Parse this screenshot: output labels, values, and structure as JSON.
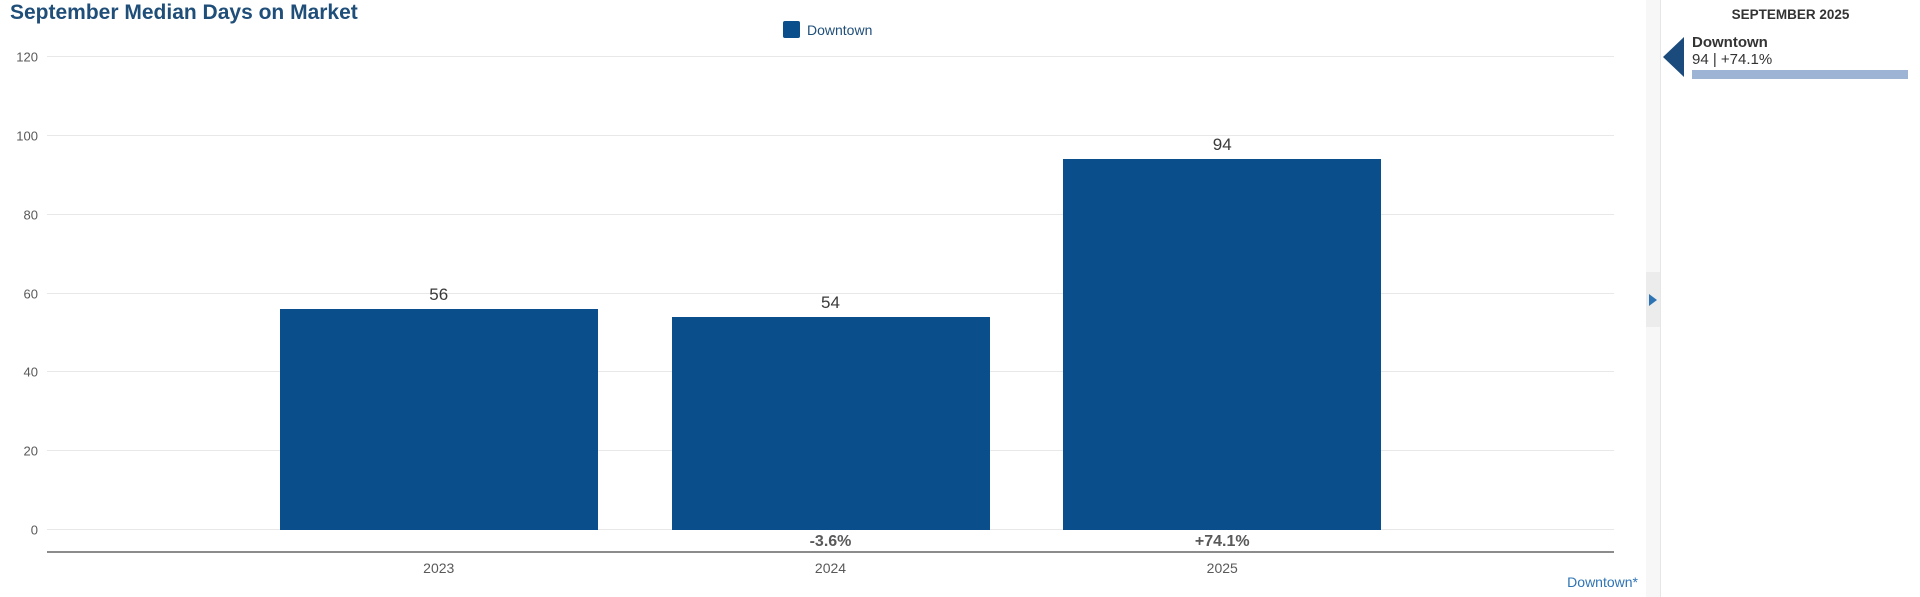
{
  "title": "September Median Days on Market",
  "legend": {
    "label": "Downtown"
  },
  "chart_data": {
    "type": "bar",
    "title": "September Median Days on Market",
    "categories": [
      "2023",
      "2024",
      "2025"
    ],
    "series": [
      {
        "name": "Downtown",
        "values": [
          56,
          54,
          94
        ]
      }
    ],
    "value_labels": [
      "56",
      "54",
      "94"
    ],
    "pct_change_labels": [
      "",
      "-3.6%",
      "+74.1%"
    ],
    "xlabel": "",
    "ylabel": "",
    "ylim": [
      0,
      120
    ],
    "yticks": [
      0,
      20,
      40,
      60,
      80,
      100,
      120
    ],
    "grid": true,
    "legend_position": "top-center",
    "bar_color": "#0B4E8C"
  },
  "footer": {
    "link_label": "Downtown*"
  },
  "side_panel": {
    "header": "SEPTEMBER 2025",
    "item": {
      "name": "Downtown",
      "stat": "94 | +74.1%"
    }
  },
  "colors": {
    "bar": "#0B4E8C",
    "title": "#1F4E79",
    "axis_text": "#595959",
    "gridline": "#E8E8E8",
    "axis_line": "#8C8C8C",
    "link": "#2E74B5",
    "panel_arrow": "#1B4B7C",
    "panel_mini_bar": "#9DB4D4"
  }
}
